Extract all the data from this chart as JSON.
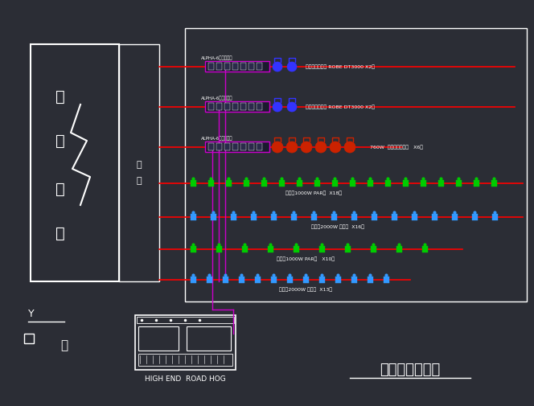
{
  "bg_color": "#2b2d35",
  "white": "#ffffff",
  "red": "#ff0000",
  "magenta": "#cc00cc",
  "blue_fix": "#3333ff",
  "green_fix": "#00cc00",
  "blue2_fix": "#3399ff",
  "red_fix": "#cc2200",
  "title": "灯光系统连接图",
  "console_label": "HIGH END  ROAD HOG",
  "alpha_labels": [
    "ALPHA-6路调光大屏",
    "ALPHA-6路调光大屏",
    "ALPHA-6路调光大屏"
  ],
  "fixture_labels": [
    "电子换色束光灯 ROBE DT3000 X2台",
    "电子换色束光灯 ROBE DT3000 X2台",
    "760W  调光电脑摇头灯   X6台",
    "主席台1000W PAR灯  X18台",
    "主席台2000W 聚光灯  X16台",
    "侧幕台1000W PAR灯   X10台",
    "后幕台2000W 聚光灯  X13台"
  ],
  "left_chars": [
    "配",
    "电",
    "箱",
    "系"
  ],
  "col_chars": [
    "竖",
    "箱"
  ],
  "figw": 6.64,
  "figh": 5.05,
  "dpi": 100
}
